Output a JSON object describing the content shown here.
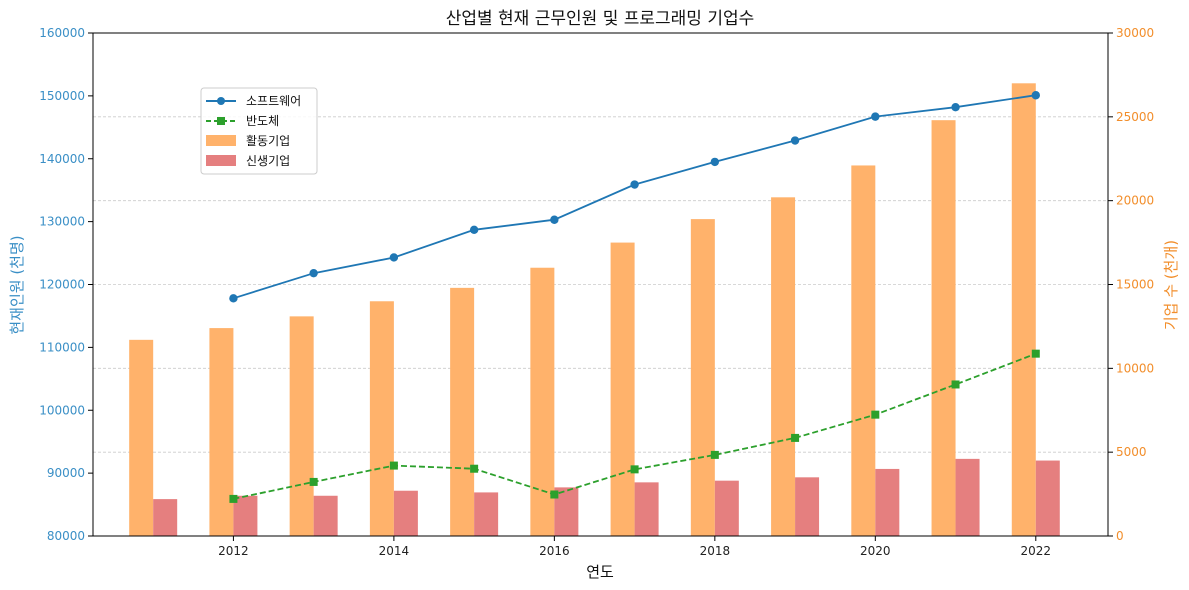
{
  "chart_data": {
    "type": "bar+line",
    "title": "산업별 현재 근무인원 및 프로그래밍 기업수",
    "xlabel": "연도",
    "ylabel_left": "현재인원 (천명)",
    "ylabel_right": "기업 수 (천개)",
    "ylim_left": [
      80000,
      160000
    ],
    "ylim_right": [
      0,
      30000
    ],
    "xlim": [
      2010.25,
      2022.9
    ],
    "x_ticks": [
      "2012",
      "2014",
      "2016",
      "2018",
      "2020",
      "2022"
    ],
    "y_ticks_left": [
      "80000",
      "90000",
      "100000",
      "110000",
      "120000",
      "130000",
      "140000",
      "150000",
      "160000"
    ],
    "y_ticks_right": [
      "0",
      "5000",
      "10000",
      "15000",
      "20000",
      "25000",
      "30000"
    ],
    "grid": "horizontal dashed (right axis)",
    "legend_position": "upper-left",
    "colors": {
      "software": "#1f77b4",
      "semiconductor": "#2ca02c",
      "active": "#ffb26b",
      "new": "#e57f7f",
      "left_axis": "#3a8fc6",
      "right_axis": "#f28e2b"
    },
    "lines": [
      {
        "name": "소프트웨어",
        "axis": "left",
        "x": [
          2012,
          2013,
          2014,
          2015,
          2016,
          2017,
          2018,
          2019,
          2020,
          2021,
          2022
        ],
        "values": [
          117800,
          121800,
          124300,
          128700,
          130300,
          135900,
          139500,
          142900,
          146700,
          148200,
          150100
        ]
      },
      {
        "name": "반도체",
        "axis": "left",
        "x": [
          2012,
          2013,
          2014,
          2015,
          2016,
          2017,
          2018,
          2019,
          2020,
          2021,
          2022
        ],
        "values": [
          85900,
          88600,
          91200,
          90700,
          86600,
          90600,
          92900,
          95600,
          99300,
          104100,
          109000
        ]
      }
    ],
    "bars": [
      {
        "name": "활동기업",
        "axis": "right",
        "x": [
          2011,
          2012,
          2013,
          2014,
          2015,
          2016,
          2017,
          2018,
          2019,
          2020,
          2021,
          2022
        ],
        "values": [
          11700,
          12400,
          13100,
          14000,
          14800,
          16000,
          17500,
          18900,
          20200,
          22100,
          24800,
          27000
        ]
      },
      {
        "name": "신생기업",
        "axis": "right",
        "x": [
          2011,
          2012,
          2013,
          2014,
          2015,
          2016,
          2017,
          2018,
          2019,
          2020,
          2021,
          2022
        ],
        "values": [
          2200,
          2400,
          2400,
          2700,
          2600,
          2900,
          3200,
          3300,
          3500,
          4000,
          4600,
          4500
        ]
      }
    ]
  }
}
